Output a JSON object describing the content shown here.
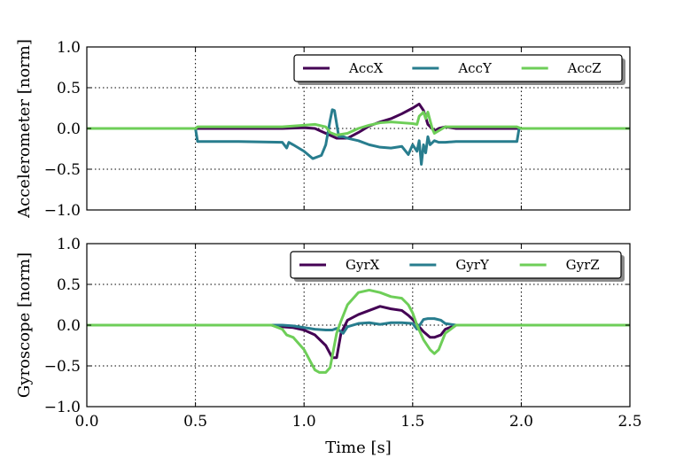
{
  "chart_data": [
    {
      "type": "line",
      "id": "acc",
      "title": "",
      "xlabel": "",
      "ylabel": "Accelerometer [norm]",
      "xlim": [
        0.0,
        2.5
      ],
      "ylim": [
        -1.0,
        1.0
      ],
      "xticks": [
        0.0,
        0.5,
        1.0,
        1.5,
        2.0,
        2.5
      ],
      "yticks": [
        -1.0,
        -0.5,
        0.0,
        0.5,
        1.0
      ],
      "xtick_labels": [
        "",
        "",
        "",
        "",
        "",
        ""
      ],
      "ytick_labels": [
        "−1.0",
        "−0.5",
        "0.0",
        "0.5",
        "1.0"
      ],
      "grid": true,
      "legend_position": "top-right",
      "series": [
        {
          "name": "AccX",
          "color": "#440154",
          "x": [
            0,
            0.5,
            0.9,
            1.0,
            1.05,
            1.1,
            1.15,
            1.2,
            1.25,
            1.3,
            1.35,
            1.4,
            1.45,
            1.5,
            1.53,
            1.55,
            1.57,
            1.6,
            1.62,
            1.65,
            1.7,
            2.0,
            2.5
          ],
          "y": [
            0,
            0,
            0,
            0.01,
            0.0,
            -0.06,
            -0.12,
            -0.12,
            -0.05,
            0.03,
            0.08,
            0.12,
            0.18,
            0.25,
            0.3,
            0.22,
            0.05,
            -0.03,
            0.0,
            0.02,
            0.0,
            0.0,
            0.0
          ]
        },
        {
          "name": "AccY",
          "color": "#287d8e",
          "x": [
            0,
            0.5,
            0.51,
            0.7,
            0.9,
            0.92,
            0.93,
            0.95,
            1.0,
            1.04,
            1.08,
            1.1,
            1.12,
            1.13,
            1.14,
            1.16,
            1.18,
            1.2,
            1.25,
            1.3,
            1.35,
            1.4,
            1.45,
            1.48,
            1.5,
            1.52,
            1.53,
            1.54,
            1.55,
            1.56,
            1.57,
            1.58,
            1.6,
            1.62,
            1.65,
            1.7,
            1.8,
            1.98,
            1.99,
            2.5
          ],
          "y": [
            0,
            0,
            -0.16,
            -0.16,
            -0.17,
            -0.24,
            -0.17,
            -0.2,
            -0.28,
            -0.37,
            -0.33,
            -0.2,
            0.1,
            0.23,
            0.22,
            -0.1,
            -0.1,
            -0.12,
            -0.15,
            -0.2,
            -0.23,
            -0.24,
            -0.22,
            -0.32,
            -0.2,
            -0.28,
            -0.15,
            -0.44,
            -0.2,
            -0.3,
            -0.1,
            -0.2,
            -0.15,
            -0.17,
            -0.17,
            -0.16,
            -0.16,
            -0.16,
            0.0,
            0.0
          ]
        },
        {
          "name": "AccZ",
          "color": "#6ece58",
          "x": [
            0,
            0.5,
            0.51,
            0.8,
            0.9,
            1.0,
            1.05,
            1.1,
            1.12,
            1.15,
            1.2,
            1.25,
            1.3,
            1.35,
            1.4,
            1.45,
            1.5,
            1.52,
            1.53,
            1.55,
            1.56,
            1.57,
            1.59,
            1.6,
            1.65,
            1.7,
            1.98,
            2.0,
            2.5
          ],
          "y": [
            0,
            0,
            0.02,
            0.02,
            0.02,
            0.04,
            0.05,
            0.02,
            -0.05,
            -0.08,
            -0.06,
            0.0,
            0.04,
            0.07,
            0.08,
            0.07,
            0.06,
            0.05,
            0.15,
            0.2,
            0.12,
            0.2,
            0.0,
            -0.06,
            0.02,
            0.02,
            0.02,
            0.0,
            0.0
          ]
        }
      ]
    },
    {
      "type": "line",
      "id": "gyr",
      "title": "",
      "xlabel": "Time [s]",
      "ylabel": "Gyroscope [norm]",
      "xlim": [
        0.0,
        2.5
      ],
      "ylim": [
        -1.0,
        1.0
      ],
      "xticks": [
        0.0,
        0.5,
        1.0,
        1.5,
        2.0,
        2.5
      ],
      "yticks": [
        -1.0,
        -0.5,
        0.0,
        0.5,
        1.0
      ],
      "xtick_labels": [
        "0.0",
        "0.5",
        "1.0",
        "1.5",
        "2.0",
        "2.5"
      ],
      "ytick_labels": [
        "−1.0",
        "−0.5",
        "0.0",
        "0.5",
        "1.0"
      ],
      "grid": true,
      "legend_position": "top-right",
      "series": [
        {
          "name": "GyrX",
          "color": "#440154",
          "x": [
            0,
            0.85,
            0.9,
            0.95,
            1.0,
            1.05,
            1.1,
            1.13,
            1.15,
            1.17,
            1.2,
            1.25,
            1.3,
            1.35,
            1.4,
            1.45,
            1.48,
            1.5,
            1.53,
            1.55,
            1.58,
            1.6,
            1.63,
            1.65,
            1.7,
            2.5
          ],
          "y": [
            0,
            0,
            -0.02,
            -0.03,
            -0.06,
            -0.12,
            -0.25,
            -0.4,
            -0.4,
            -0.1,
            0.06,
            0.13,
            0.18,
            0.23,
            0.2,
            0.18,
            0.12,
            0.07,
            -0.02,
            -0.08,
            -0.15,
            -0.15,
            -0.12,
            -0.05,
            0.0,
            0.0
          ]
        },
        {
          "name": "GyrY",
          "color": "#287d8e",
          "x": [
            0,
            0.9,
            0.95,
            1.0,
            1.05,
            1.1,
            1.13,
            1.15,
            1.18,
            1.2,
            1.25,
            1.3,
            1.35,
            1.4,
            1.45,
            1.5,
            1.52,
            1.55,
            1.57,
            1.6,
            1.63,
            1.65,
            1.7,
            2.5
          ],
          "y": [
            0,
            0,
            -0.01,
            -0.03,
            -0.05,
            -0.06,
            -0.06,
            -0.04,
            -0.1,
            -0.02,
            0.02,
            0.03,
            0.01,
            0.03,
            0.03,
            0.02,
            -0.05,
            0.07,
            0.08,
            0.08,
            0.06,
            0.02,
            0.0,
            0.0
          ]
        },
        {
          "name": "GyrZ",
          "color": "#6ece58",
          "x": [
            0,
            0.85,
            0.9,
            0.92,
            0.95,
            1.0,
            1.03,
            1.05,
            1.07,
            1.1,
            1.12,
            1.15,
            1.17,
            1.2,
            1.25,
            1.3,
            1.35,
            1.4,
            1.45,
            1.48,
            1.5,
            1.52,
            1.55,
            1.58,
            1.6,
            1.62,
            1.65,
            1.7,
            2.5
          ],
          "y": [
            0,
            0,
            -0.05,
            -0.12,
            -0.15,
            -0.3,
            -0.45,
            -0.55,
            -0.58,
            -0.58,
            -0.52,
            -0.1,
            0.05,
            0.25,
            0.4,
            0.43,
            0.4,
            0.35,
            0.33,
            0.25,
            0.15,
            0.0,
            -0.18,
            -0.3,
            -0.35,
            -0.3,
            -0.1,
            0.0,
            0.0
          ]
        }
      ]
    }
  ]
}
